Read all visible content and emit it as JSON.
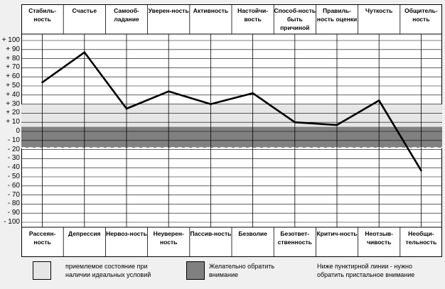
{
  "chart_data": {
    "type": "line",
    "title": "",
    "xlabel": "",
    "ylabel": "",
    "ylim": [
      -100,
      100
    ],
    "ytick_step": 10,
    "grid": true,
    "top_labels": [
      "Стабиль-ность",
      "Счастье",
      "Самооб-ладание",
      "Уверен-ность",
      "Активность",
      "Настойчи-вость",
      "Способ-ность быть причиной",
      "Правиль-ность оценки",
      "Чуткость",
      "Общитель-ность"
    ],
    "bottom_labels": [
      "Рассеян-ность",
      "Депрессия",
      "Нервоз-ность",
      "Неуверен-ность",
      "Пассив-ность",
      "Безволие",
      "Безответ-ственность",
      "Критич-ность",
      "Неотзыв-чивость",
      "Необщи-тельность"
    ],
    "series": [
      {
        "name": "profile",
        "values": [
          54,
          87,
          25,
          44,
          30,
          42,
          10,
          7,
          34,
          -43
        ]
      }
    ],
    "bands": [
      {
        "name": "acceptable",
        "from": 5,
        "to": 30,
        "color": "#e6e6e6"
      },
      {
        "name": "attention",
        "from": -18,
        "to": 5,
        "color": "#808080"
      }
    ],
    "dashed_threshold": -18
  },
  "legend": [
    {
      "text": "приемлемое состояние при наличии идеальных условий",
      "color": "#e6e6e6"
    },
    {
      "text": "Желательно обратить внимание",
      "color": "#808080"
    },
    {
      "text": "Ниже пунктирной линии - нужно обратить пристальное внимание"
    }
  ]
}
